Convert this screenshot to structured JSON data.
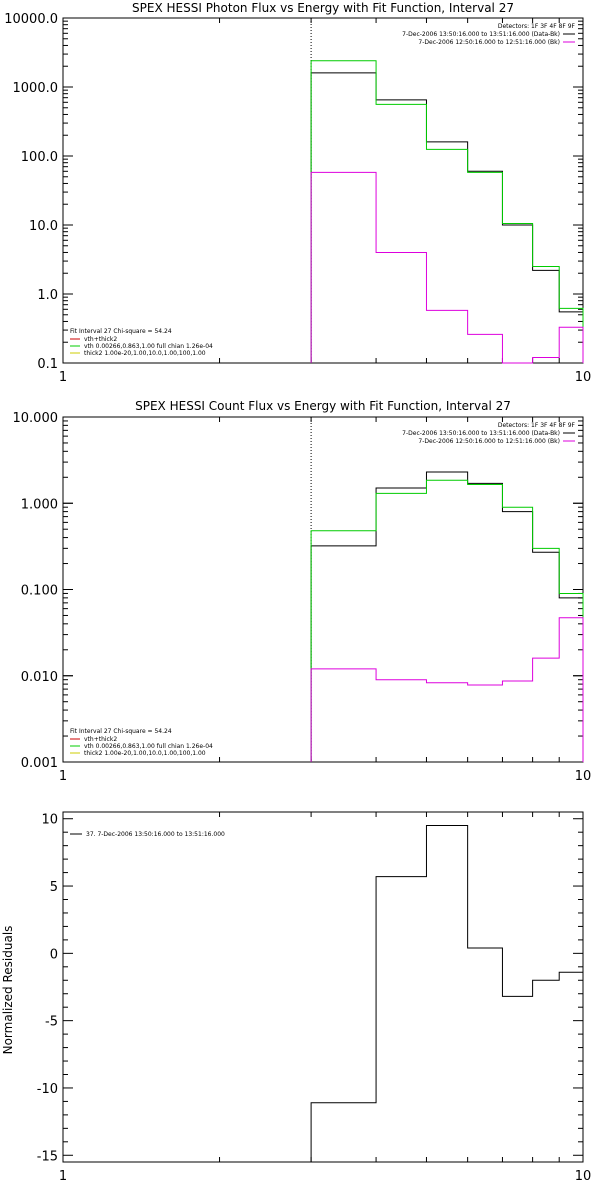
{
  "colors": {
    "axis": "#000000",
    "data": "#000000",
    "vth": "#00cc00",
    "thick": "#dd00dd",
    "fit_total": "#cc0000",
    "spec_y": "#cccc00"
  },
  "chart_data": [
    {
      "type": "line",
      "title": "SPEX HESSI Photon Flux vs Energy with Fit Function, Interval 27",
      "x_scale": "log",
      "y_scale": "log",
      "xlim": [
        1,
        10
      ],
      "ylim": [
        0.1,
        10000
      ],
      "xticks": [
        {
          "v": 1,
          "label": "1"
        },
        {
          "v": 10,
          "label": "10"
        }
      ],
      "yticks": [
        {
          "v": 10000,
          "label": "10000.0"
        },
        {
          "v": 1000,
          "label": "1000.0"
        },
        {
          "v": 100,
          "label": "100.0"
        },
        {
          "v": 10,
          "label": "10.0"
        },
        {
          "v": 1,
          "label": "1.0"
        },
        {
          "v": 0.1,
          "label": "0.1"
        }
      ],
      "vline_x": 3,
      "info": [
        "Detectors: 1F 3F 4F 8F 9F",
        "7-Dec-2006 13:50:16.000 to 13:51:16.000 (Data-Bk)",
        "7-Dec-2006 12:50:16.000 to 12:51:16.000 (Bk)"
      ],
      "info_colors": [
        "#000000",
        "#000000",
        "#dd00dd"
      ],
      "fit_legend": [
        "Fit Interval 27   Chi-square = 54.24",
        "vth+thick2",
        "vth 0.00266,0.863,1.00  full chian 1.26e-04",
        "thick2 1.00e-20,1.00,10.0,1.00,100,1.00"
      ],
      "fit_legend_colors": [
        "#000000",
        "#cc0000",
        "#00cc00",
        "#cccc00"
      ],
      "series": [
        {
          "kind": "data",
          "color": "#000000",
          "edges": [
            3,
            4,
            5,
            6,
            7,
            8,
            9,
            10
          ],
          "values": [
            1600,
            650,
            160,
            60,
            10,
            2.2,
            0.55
          ]
        },
        {
          "kind": "vth",
          "color": "#00cc00",
          "edges": [
            3,
            4,
            5,
            6,
            7,
            8,
            9,
            10
          ],
          "values": [
            2400,
            560,
            125,
            58,
            10.5,
            2.5,
            0.62
          ]
        },
        {
          "kind": "bkg",
          "color": "#dd00dd",
          "edges": [
            3,
            4,
            5,
            6,
            7,
            8,
            9,
            10
          ],
          "values": [
            58,
            4,
            0.58,
            0.26,
            0.095,
            0.12,
            0.33
          ]
        }
      ]
    },
    {
      "type": "line",
      "title": "SPEX HESSI Count Flux vs Energy with Fit Function, Interval 27",
      "x_scale": "log",
      "y_scale": "log",
      "xlim": [
        1,
        10
      ],
      "ylim": [
        0.001,
        10
      ],
      "xticks": [
        {
          "v": 1,
          "label": "1"
        },
        {
          "v": 10,
          "label": "10"
        }
      ],
      "yticks": [
        {
          "v": 10,
          "label": "10.000"
        },
        {
          "v": 1,
          "label": "1.000"
        },
        {
          "v": 0.1,
          "label": "0.100"
        },
        {
          "v": 0.01,
          "label": "0.010"
        },
        {
          "v": 0.001,
          "label": "0.001"
        }
      ],
      "vline_x": 3,
      "info": [
        "Detectors: 1F 3F 4F 8F 9F",
        "7-Dec-2006 13:50:16.000 to 13:51:16.000 (Data-Bk)",
        "7-Dec-2006 12:50:16.000 to 12:51:16.000 (Bk)"
      ],
      "info_colors": [
        "#000000",
        "#000000",
        "#dd00dd"
      ],
      "fit_legend": [
        "Fit Interval 27   Chi-square = 54.24",
        "vth+thick2",
        "vth 0.00266,0.863,1.00  full chian 1.26e-04",
        "thick2 1.00e-20,1.00,10.0,1.00,100,1.00"
      ],
      "fit_legend_colors": [
        "#000000",
        "#cc0000",
        "#00cc00",
        "#cccc00"
      ],
      "series": [
        {
          "kind": "data",
          "color": "#000000",
          "edges": [
            3,
            4,
            5,
            6,
            7,
            8,
            9,
            10
          ],
          "values": [
            0.32,
            1.5,
            2.3,
            1.7,
            0.8,
            0.27,
            0.08
          ]
        },
        {
          "kind": "vth",
          "color": "#00cc00",
          "edges": [
            3,
            4,
            5,
            6,
            7,
            8,
            9,
            10
          ],
          "values": [
            0.48,
            1.3,
            1.85,
            1.65,
            0.9,
            0.3,
            0.09
          ]
        },
        {
          "kind": "bkg",
          "color": "#dd00dd",
          "edges": [
            3,
            4,
            5,
            6,
            7,
            8,
            9,
            10
          ],
          "values": [
            0.012,
            0.009,
            0.0083,
            0.0078,
            0.0087,
            0.016,
            0.047
          ]
        }
      ]
    },
    {
      "type": "line",
      "title": "",
      "x_scale": "log",
      "y_scale": "linear",
      "xlim": [
        1,
        10
      ],
      "ylim": [
        -15.5,
        10.5
      ],
      "ylabel": "Normalized Residuals",
      "xticks": [
        {
          "v": 1,
          "label": "1"
        },
        {
          "v": 10,
          "label": "10"
        }
      ],
      "yticks": [
        {
          "v": 10,
          "label": "10"
        },
        {
          "v": 5,
          "label": "5"
        },
        {
          "v": 0,
          "label": "0"
        },
        {
          "v": -5,
          "label": "-5"
        },
        {
          "v": -10,
          "label": "-10"
        },
        {
          "v": -15,
          "label": "-15"
        }
      ],
      "legend": [
        "37.  7-Dec-2006 13:50:16.000 to 13:51:16.000"
      ],
      "series": [
        {
          "kind": "resid",
          "color": "#000000",
          "edges": [
            3,
            4,
            5,
            6,
            7,
            8,
            9,
            10
          ],
          "values": [
            -11.1,
            5.7,
            9.5,
            0.4,
            -3.2,
            -2.0,
            -1.4
          ]
        }
      ]
    }
  ]
}
